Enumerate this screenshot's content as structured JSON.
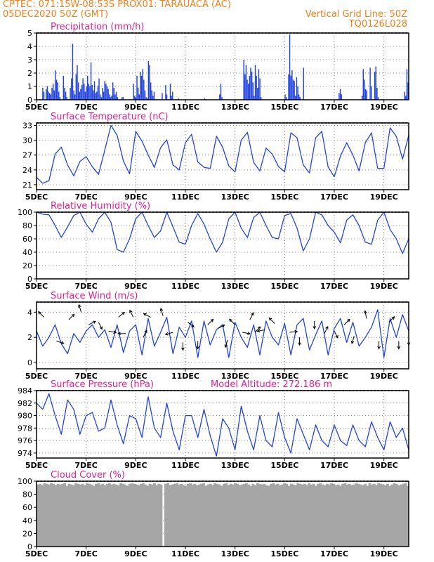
{
  "header": {
    "line1": "CPTEC:   071:15W-08:53S   PROX01: TARAUACA (AC)",
    "line2_left": "05DEC2020 50Z (GMT)",
    "line2_right": "Vertical Grid Line: 50Z",
    "line3_right": "TQ0126L028"
  },
  "colors": {
    "header": "#f0801e",
    "title": "#e0208e",
    "series": "#2244dd",
    "bars": "#2244dd",
    "cloud": "#a6a6a6",
    "grid": "#888888"
  },
  "x_tick_labels": [
    "5DEC",
    "7DEC",
    "9DEC",
    "11DEC",
    "13DEC",
    "15DEC",
    "17DEC",
    "19DEC"
  ],
  "chart_data": [
    {
      "type": "bar",
      "title": "Precipitation (mm/h)",
      "ylim": [
        0,
        5
      ],
      "yticks": [
        "0",
        "1",
        "2",
        "3",
        "4",
        "5"
      ],
      "x_range": [
        0,
        15
      ],
      "grid": true,
      "values": [
        0,
        0,
        0,
        0,
        0,
        0.9,
        0.6,
        0,
        0.8,
        1.0,
        0.6,
        0.5,
        0.4,
        0.9,
        1.2,
        0.7,
        2.2,
        1.5,
        1.3,
        0.6,
        0.2,
        0,
        0,
        1.8,
        0.9,
        0.6,
        0.2,
        0,
        0,
        0.9,
        1.6,
        4.2,
        0.7,
        0.4,
        1.9,
        2.6,
        1.3,
        0.6,
        0.8,
        1.1,
        1.6,
        1.2,
        0.6,
        1.0,
        1.8,
        1.2,
        1.0,
        2.8,
        1.1,
        0.7,
        1.4,
        0.5,
        0.6,
        1.0,
        1.6,
        0.4,
        0.2,
        0.9,
        0.6,
        1.4,
        1.2,
        1.0,
        0.8,
        0.4,
        0.2,
        0.3,
        1.3,
        0.9,
        0.4,
        0.6,
        0.2,
        0,
        0,
        0,
        0.2,
        0.2,
        0,
        0,
        0,
        0,
        0,
        0,
        0,
        0,
        1.2,
        0.3,
        0.2,
        1.8,
        0.9,
        0.4,
        2.1,
        1.8,
        2.3,
        1.5,
        0.7,
        0.2,
        0.1,
        2.9,
        2.6,
        1.3,
        0.7,
        0.3,
        0.6,
        0,
        0,
        0,
        0,
        0,
        0,
        0.5,
        0,
        0,
        1.1,
        0.4,
        0,
        0,
        1.2,
        0.3,
        0.6,
        0,
        0,
        0,
        0,
        0.1,
        0,
        0,
        0,
        0,
        0,
        0,
        0,
        0,
        0,
        0,
        0,
        0,
        0,
        0,
        0,
        0,
        0,
        0,
        0,
        0,
        0,
        0,
        0.1,
        0,
        0,
        0,
        0,
        0,
        0,
        0,
        0,
        0,
        0,
        0,
        0,
        0.4,
        1.2,
        0.2,
        0,
        0,
        0,
        0,
        0,
        0,
        0,
        0,
        0,
        0,
        0,
        0,
        0,
        0,
        0,
        0,
        0,
        0,
        3.0,
        1.9,
        2.6,
        1.5,
        1.2,
        1.8,
        2.4,
        2.1,
        1.3,
        0.3,
        2.6,
        1.8,
        0.9,
        2.3,
        1.6,
        0.2,
        0,
        0,
        0,
        0,
        0,
        0,
        0,
        0,
        0,
        0,
        0,
        0,
        0,
        0,
        0,
        0,
        0,
        0,
        0,
        0,
        0.4,
        0.2,
        0,
        1.9,
        4.9,
        1.8,
        2.2,
        1.5,
        1.4,
        0.3,
        1.7,
        1.0,
        0.4,
        0.2,
        0,
        0,
        2.4,
        0,
        0,
        0,
        0,
        0,
        0,
        0,
        0,
        0,
        0,
        0,
        0,
        0,
        0,
        0,
        0,
        0,
        0,
        0,
        0,
        0,
        0,
        0,
        0,
        0,
        0,
        0,
        0,
        0,
        0,
        0.5,
        0.8,
        0.4,
        0,
        0,
        0,
        0,
        0,
        0,
        0,
        0,
        0,
        0,
        0,
        0,
        0,
        0,
        0,
        0,
        0,
        0.3,
        2.3,
        1.5,
        0.8,
        0.7,
        0,
        0,
        2.4,
        1.0,
        0,
        0,
        2.1,
        2.5,
        0.9,
        0.2,
        0,
        0,
        0,
        0,
        0,
        0,
        0,
        0,
        0,
        0,
        0,
        0,
        0,
        0,
        0,
        0,
        0,
        0,
        0,
        0,
        0,
        0,
        0.6,
        0.3,
        2.3,
        1.3
      ]
    },
    {
      "type": "line",
      "title": "Surface Temperature (nC)",
      "ylim": [
        20,
        33.5
      ],
      "yticks": [
        "21",
        "24",
        "27",
        "30",
        "33"
      ],
      "x_range": [
        0,
        15
      ],
      "grid": true,
      "x": [
        0,
        0.25,
        0.5,
        0.75,
        1,
        1.25,
        1.5,
        1.75,
        2,
        2.25,
        2.5,
        2.75,
        3,
        3.25,
        3.5,
        3.75,
        4,
        4.25,
        4.5,
        4.75,
        5,
        5.25,
        5.5,
        5.75,
        6,
        6.25,
        6.5,
        6.75,
        7,
        7.25,
        7.5,
        7.75,
        8,
        8.25,
        8.5,
        8.75,
        9,
        9.25,
        9.5,
        9.75,
        10,
        10.25,
        10.5,
        10.75,
        11,
        11.25,
        11.5,
        11.75,
        12,
        12.25,
        12.5,
        12.75,
        13,
        13.25,
        13.5,
        13.75,
        14,
        14.25,
        14.5,
        14.75,
        15
      ],
      "values": [
        22.5,
        21.3,
        21.8,
        27.2,
        28.6,
        25.0,
        22.8,
        25.7,
        26.7,
        24.6,
        23.1,
        28.0,
        33.0,
        31.0,
        25.8,
        23.2,
        31.8,
        29.8,
        27.0,
        24.5,
        28.5,
        30.1,
        25.0,
        24.0,
        29.5,
        31.2,
        25.6,
        24.5,
        24.3,
        30.8,
        28.6,
        24.8,
        23.6,
        30.0,
        31.6,
        25.5,
        23.8,
        28.4,
        27.2,
        24.7,
        23.6,
        31.5,
        30.5,
        25.0,
        23.4,
        30.5,
        31.8,
        24.6,
        22.6,
        26.8,
        29.5,
        27.0,
        23.8,
        29.5,
        31.5,
        24.3,
        24.3,
        32.5,
        30.8,
        26.2,
        31.0
      ]
    },
    {
      "type": "line",
      "title": "Relative Humidity (%)",
      "ylim": [
        0,
        100
      ],
      "yticks": [
        "0",
        "20",
        "40",
        "60",
        "80",
        "100"
      ],
      "x_range": [
        0,
        15
      ],
      "grid": true,
      "x": [
        0,
        0.25,
        0.5,
        0.75,
        1,
        1.25,
        1.5,
        1.75,
        2,
        2.25,
        2.5,
        2.75,
        3,
        3.25,
        3.5,
        3.75,
        4,
        4.25,
        4.5,
        4.75,
        5,
        5.25,
        5.5,
        5.75,
        6,
        6.25,
        6.5,
        6.75,
        7,
        7.25,
        7.5,
        7.75,
        8,
        8.25,
        8.5,
        8.75,
        9,
        9.25,
        9.5,
        9.75,
        10,
        10.25,
        10.5,
        10.75,
        11,
        11.25,
        11.5,
        11.75,
        12,
        12.25,
        12.5,
        12.75,
        13,
        13.25,
        13.5,
        13.75,
        14,
        14.25,
        14.5,
        14.75,
        15
      ],
      "values": [
        100,
        97,
        96,
        80,
        62,
        78,
        95,
        100,
        82,
        70,
        90,
        100,
        85,
        44,
        40,
        60,
        90,
        100,
        80,
        62,
        72,
        100,
        78,
        55,
        52,
        80,
        98,
        82,
        60,
        40,
        55,
        90,
        100,
        76,
        62,
        92,
        100,
        80,
        62,
        60,
        95,
        98,
        76,
        42,
        60,
        100,
        96,
        80,
        70,
        54,
        88,
        96,
        80,
        55,
        52,
        88,
        100,
        74,
        60,
        38,
        60
      ]
    },
    {
      "type": "line",
      "title": "Surface Wind (m/s)",
      "ylim": [
        -0.5,
        4.8
      ],
      "yticks": [
        "0",
        "2",
        "4"
      ],
      "x_range": [
        0,
        15
      ],
      "grid": true,
      "x": [
        0,
        0.25,
        0.5,
        0.75,
        1,
        1.25,
        1.5,
        1.75,
        2,
        2.25,
        2.5,
        2.75,
        3,
        3.25,
        3.5,
        3.75,
        4,
        4.25,
        4.5,
        4.75,
        5,
        5.25,
        5.5,
        5.75,
        6,
        6.25,
        6.5,
        6.75,
        7,
        7.25,
        7.5,
        7.75,
        8,
        8.25,
        8.5,
        8.75,
        9,
        9.25,
        9.5,
        9.75,
        10,
        10.25,
        10.5,
        10.75,
        11,
        11.25,
        11.5,
        11.75,
        12,
        12.25,
        12.5,
        12.75,
        13,
        13.25,
        13.5,
        13.75,
        14,
        14.25,
        14.5,
        14.75,
        15
      ],
      "values": [
        2.5,
        1.3,
        2.0,
        3.0,
        1.5,
        0.7,
        2.3,
        1.6,
        2.5,
        3.0,
        2.0,
        2.6,
        1.2,
        3.0,
        0.8,
        2.5,
        3.0,
        0.6,
        3.5,
        1.3,
        2.4,
        3.6,
        0.7,
        2.8,
        2.0,
        3.3,
        0.4,
        3.3,
        1.4,
        2.6,
        3.0,
        0.4,
        3.2,
        2.0,
        1.2,
        3.0,
        0.6,
        3.3,
        2.0,
        1.4,
        3.1,
        0.6,
        3.0,
        3.5,
        1.0,
        2.2,
        3.3,
        0.6,
        2.7,
        3.5,
        1.6,
        3.2,
        1.3,
        2.0,
        2.8,
        4.2,
        0.4,
        3.5,
        2.0,
        3.8,
        2.5
      ]
    },
    {
      "type": "line",
      "title": "Surface Pressure (hPa)",
      "annotation": "Model Altitude: 272.186 m",
      "ylim": [
        973.2,
        984
      ],
      "yticks": [
        "974",
        "976",
        "978",
        "980",
        "982",
        "984"
      ],
      "x_range": [
        0,
        15
      ],
      "grid": true,
      "x": [
        0,
        0.25,
        0.5,
        0.75,
        1,
        1.25,
        1.5,
        1.75,
        2,
        2.25,
        2.5,
        2.75,
        3,
        3.25,
        3.5,
        3.75,
        4,
        4.25,
        4.5,
        4.75,
        5,
        5.25,
        5.5,
        5.75,
        6,
        6.25,
        6.5,
        6.75,
        7,
        7.25,
        7.5,
        7.75,
        8,
        8.25,
        8.5,
        8.75,
        9,
        9.25,
        9.5,
        9.75,
        10,
        10.25,
        10.5,
        10.75,
        11,
        11.25,
        11.5,
        11.75,
        12,
        12.25,
        12.5,
        12.75,
        13,
        13.25,
        13.5,
        13.75,
        14,
        14.25,
        14.5,
        14.75,
        15
      ],
      "values": [
        982.0,
        981.0,
        983.5,
        980.0,
        977.0,
        982.5,
        981.0,
        977.0,
        980.0,
        980.5,
        977.5,
        978.0,
        982.5,
        978.5,
        975.5,
        980.0,
        979.5,
        976.5,
        983.0,
        978.0,
        976.5,
        982.0,
        977.5,
        974.5,
        980.0,
        980.0,
        976.5,
        981.0,
        976.8,
        973.5,
        979.5,
        978.0,
        974.5,
        981.5,
        977.5,
        974.5,
        980.0,
        976.0,
        975.0,
        980.5,
        976.5,
        974.0,
        979.5,
        977.0,
        974.5,
        978.5,
        976.0,
        975.0,
        978.5,
        976.0,
        975.2,
        978.5,
        976.0,
        975.0,
        979.0,
        976.5,
        974.5,
        979.0,
        976.5,
        978.0,
        974.5
      ]
    },
    {
      "type": "bar",
      "title": "Cloud Cover (%)",
      "ylim": [
        0,
        100
      ],
      "yticks": [
        "0",
        "20",
        "40",
        "60",
        "80",
        "100"
      ],
      "x_range": [
        0,
        15
      ],
      "grid": true,
      "values": [
        95,
        96,
        94,
        97,
        96,
        95,
        97,
        96,
        94,
        96,
        95,
        96,
        97,
        93,
        96,
        95,
        94,
        97,
        96,
        95,
        96,
        94,
        97,
        96,
        95,
        93,
        96,
        97,
        95,
        96,
        94,
        96,
        97,
        95,
        96,
        95,
        94,
        97,
        96,
        95,
        93,
        96,
        97,
        96,
        95,
        94,
        96,
        97,
        95,
        93,
        96,
        95,
        97,
        94,
        96,
        95,
        0,
        96,
        97,
        94,
        95,
        96,
        97,
        95,
        96,
        94,
        93,
        96,
        97,
        95,
        96,
        94,
        95,
        96,
        97,
        93,
        95,
        96,
        94,
        97,
        96,
        95,
        93,
        96,
        97,
        94,
        96,
        95,
        97,
        96,
        94,
        95,
        96,
        97,
        95,
        93,
        96,
        94,
        97,
        96,
        95,
        96,
        94,
        93,
        96,
        97,
        95,
        96,
        94,
        95,
        97,
        96,
        93,
        96,
        95,
        94,
        97,
        96,
        95,
        96,
        94,
        97,
        95,
        96,
        93,
        96,
        97,
        95,
        94,
        96,
        95,
        97,
        96,
        94,
        95,
        93,
        96,
        97,
        95,
        96,
        94,
        95,
        97,
        96,
        95,
        94,
        96,
        93,
        97,
        95,
        96,
        94,
        97,
        96,
        95,
        94,
        96,
        93,
        95,
        97,
        96,
        94,
        95,
        96,
        97,
        93
      ]
    }
  ]
}
